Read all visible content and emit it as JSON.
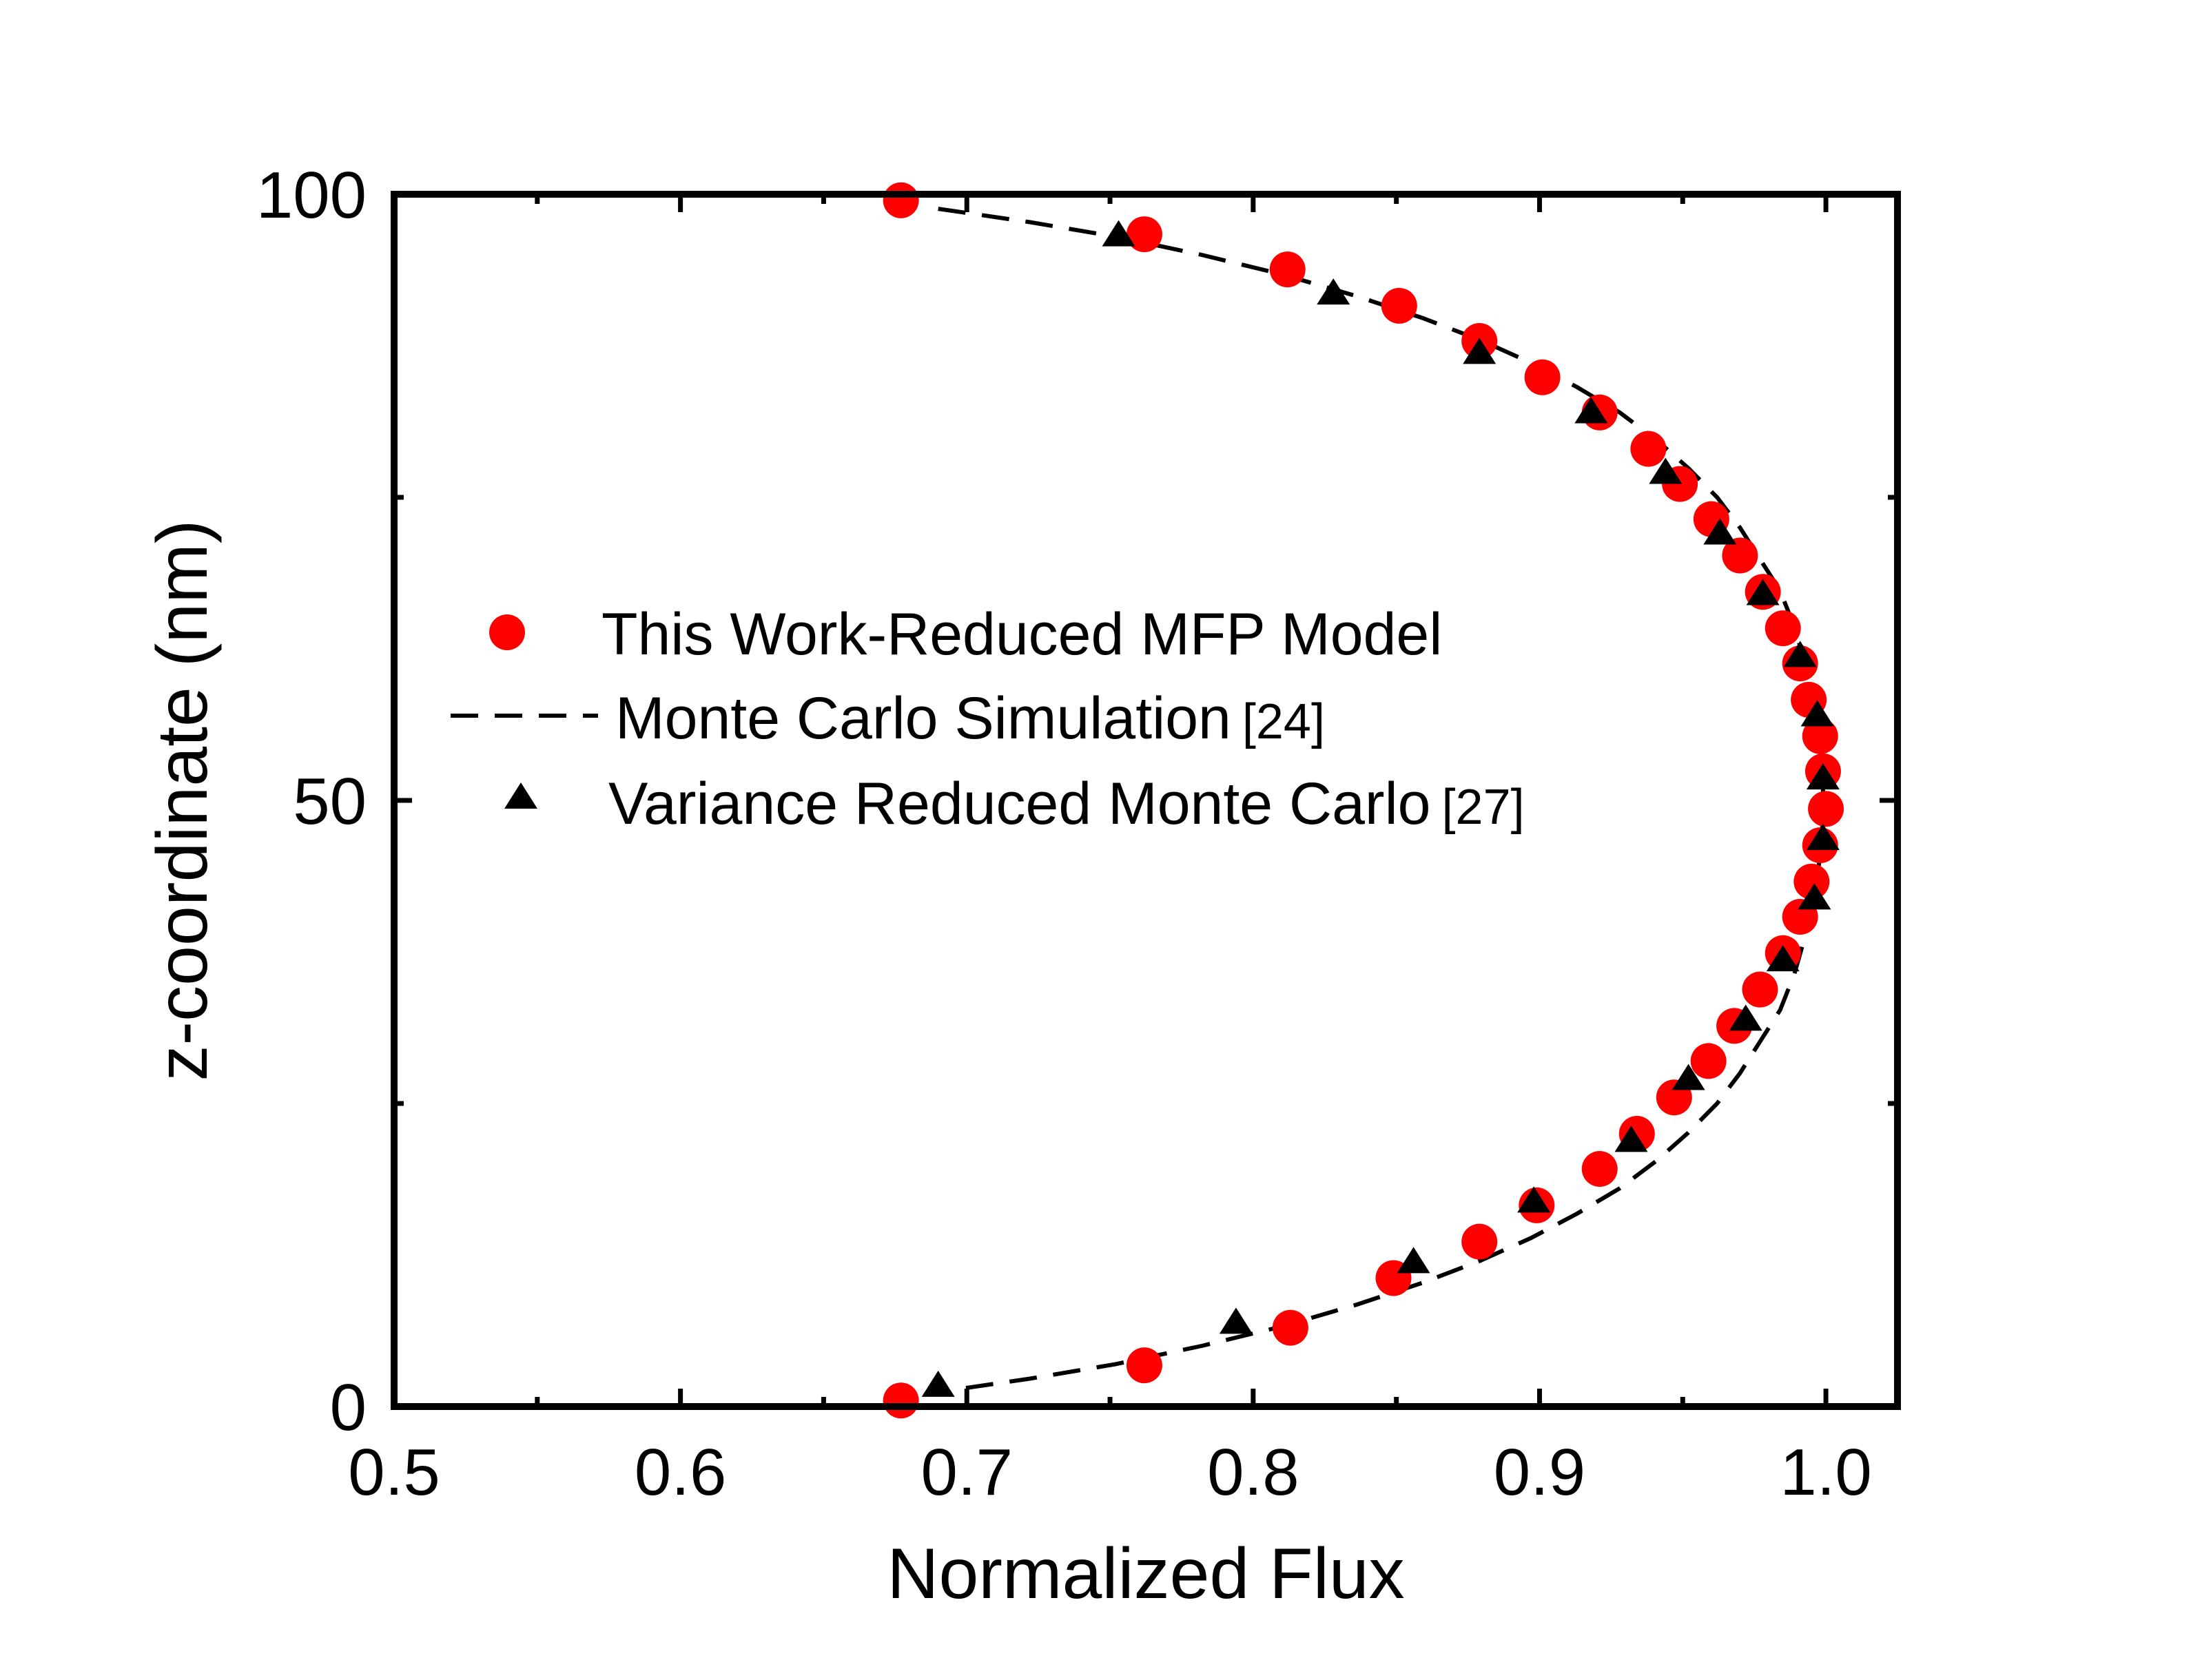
{
  "chart_data": {
    "type": "scatter",
    "xlabel": "Normalized Flux",
    "ylabel": "z-coordinate (nm)",
    "xlim": [
      0.5,
      1.025
    ],
    "ylim": [
      0,
      100
    ],
    "x_ticks": [
      "0.5",
      "0.6",
      "0.7",
      "0.8",
      "0.9",
      "1.0"
    ],
    "x_tick_values": [
      0.5,
      0.6,
      0.7,
      0.8,
      0.9,
      1.0
    ],
    "x_minor_ticks": [
      0.55,
      0.65,
      0.75,
      0.85,
      0.95
    ],
    "y_ticks": [
      "0",
      "50",
      "100"
    ],
    "y_tick_values": [
      0,
      50,
      100
    ],
    "y_minor_ticks": [
      25,
      75
    ],
    "grid": false,
    "legend_position": "center-left",
    "series": [
      {
        "name": "This Work-Reduced MFP Model",
        "ref": "",
        "style": "red-circles",
        "color": "#ff0000",
        "points": [
          [
            0.677,
            99.5
          ],
          [
            0.762,
            96.7
          ],
          [
            0.812,
            93.8
          ],
          [
            0.851,
            90.8
          ],
          [
            0.879,
            87.9
          ],
          [
            0.901,
            84.9
          ],
          [
            0.921,
            82.0
          ],
          [
            0.938,
            79.0
          ],
          [
            0.949,
            76.1
          ],
          [
            0.96,
            73.2
          ],
          [
            0.97,
            70.2
          ],
          [
            0.978,
            67.2
          ],
          [
            0.985,
            64.2
          ],
          [
            0.991,
            61.3
          ],
          [
            0.994,
            58.3
          ],
          [
            0.998,
            55.3
          ],
          [
            0.999,
            52.4
          ],
          [
            1.0,
            49.3
          ],
          [
            0.998,
            46.3
          ],
          [
            0.995,
            43.3
          ],
          [
            0.991,
            40.4
          ],
          [
            0.985,
            37.4
          ],
          [
            0.977,
            34.4
          ],
          [
            0.968,
            31.4
          ],
          [
            0.959,
            28.5
          ],
          [
            0.947,
            25.5
          ],
          [
            0.934,
            22.5
          ],
          [
            0.921,
            19.6
          ],
          [
            0.899,
            16.6
          ],
          [
            0.879,
            13.6
          ],
          [
            0.849,
            10.6
          ],
          [
            0.813,
            6.5
          ],
          [
            0.762,
            3.4
          ],
          [
            0.677,
            0.5
          ]
        ]
      },
      {
        "name": "Monte Carlo Simulation",
        "ref": "[24]",
        "style": "black-dashed-line",
        "color": "#000000",
        "points": [
          [
            0.69,
            98.8
          ],
          [
            0.722,
            97.7
          ],
          [
            0.752,
            96.5
          ],
          [
            0.782,
            95.0
          ],
          [
            0.81,
            93.4
          ],
          [
            0.836,
            91.6
          ],
          [
            0.859,
            89.8
          ],
          [
            0.879,
            88.0
          ],
          [
            0.897,
            86.1
          ],
          [
            0.913,
            84.1
          ],
          [
            0.928,
            82.0
          ],
          [
            0.941,
            79.7
          ],
          [
            0.952,
            77.4
          ],
          [
            0.962,
            75.0
          ],
          [
            0.97,
            72.5
          ],
          [
            0.977,
            69.9
          ],
          [
            0.984,
            67.3
          ],
          [
            0.989,
            64.3
          ],
          [
            0.993,
            61.1
          ],
          [
            0.996,
            58.0
          ],
          [
            0.998,
            54.5
          ],
          [
            0.999,
            51.0
          ],
          [
            0.999,
            48.5
          ],
          [
            0.998,
            45.5
          ],
          [
            0.996,
            42.0
          ],
          [
            0.993,
            39.0
          ],
          [
            0.989,
            35.7
          ],
          [
            0.984,
            32.7
          ],
          [
            0.977,
            30.1
          ],
          [
            0.97,
            27.5
          ],
          [
            0.962,
            25.0
          ],
          [
            0.952,
            22.6
          ],
          [
            0.941,
            20.3
          ],
          [
            0.928,
            18.0
          ],
          [
            0.913,
            15.9
          ],
          [
            0.897,
            13.9
          ],
          [
            0.879,
            12.0
          ],
          [
            0.859,
            10.2
          ],
          [
            0.836,
            8.4
          ],
          [
            0.81,
            6.6
          ],
          [
            0.782,
            5.0
          ],
          [
            0.752,
            3.5
          ],
          [
            0.722,
            2.3
          ],
          [
            0.69,
            1.2
          ]
        ]
      },
      {
        "name": "Variance Reduced Monte Carlo",
        "ref": "[27]",
        "style": "black-triangles",
        "color": "#000000",
        "points": [
          [
            0.753,
            96.5
          ],
          [
            0.828,
            91.7
          ],
          [
            0.879,
            86.8
          ],
          [
            0.918,
            81.9
          ],
          [
            0.944,
            76.9
          ],
          [
            0.963,
            71.9
          ],
          [
            0.978,
            66.9
          ],
          [
            0.991,
            61.8
          ],
          [
            0.997,
            56.9
          ],
          [
            0.999,
            51.7
          ],
          [
            0.999,
            46.7
          ],
          [
            0.996,
            41.8
          ],
          [
            0.985,
            36.7
          ],
          [
            0.972,
            31.8
          ],
          [
            0.952,
            26.9
          ],
          [
            0.932,
            21.8
          ],
          [
            0.898,
            16.8
          ],
          [
            0.856,
            11.8
          ],
          [
            0.794,
            6.8
          ],
          [
            0.69,
            1.6
          ]
        ]
      }
    ]
  }
}
